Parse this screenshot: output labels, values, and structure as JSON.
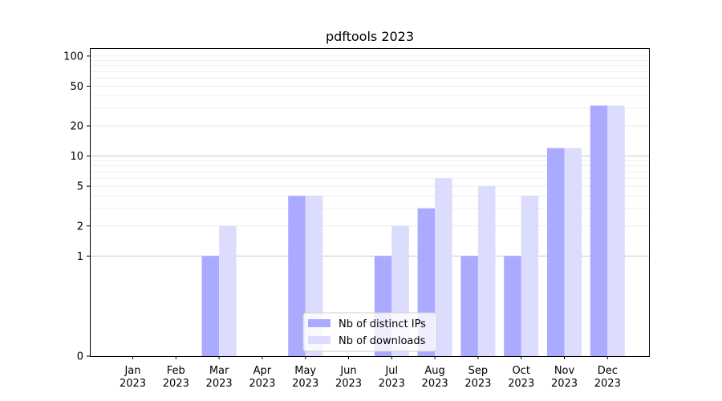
{
  "chart_data": {
    "type": "bar",
    "title": "pdftools 2023",
    "xlabel": "",
    "ylabel": "",
    "y_scale": "symlog",
    "ylim": [
      0,
      120
    ],
    "y_ticks": [
      0,
      1,
      2,
      5,
      10,
      20,
      50,
      100
    ],
    "y_tick_labels": [
      "0",
      "1",
      "2",
      "5",
      "10",
      "20",
      "50",
      "100"
    ],
    "grid": true,
    "legend_position": "bottom-center",
    "categories": [
      [
        "Jan",
        "2023"
      ],
      [
        "Feb",
        "2023"
      ],
      [
        "Mar",
        "2023"
      ],
      [
        "Apr",
        "2023"
      ],
      [
        "May",
        "2023"
      ],
      [
        "Jun",
        "2023"
      ],
      [
        "Jul",
        "2023"
      ],
      [
        "Aug",
        "2023"
      ],
      [
        "Sep",
        "2023"
      ],
      [
        "Oct",
        "2023"
      ],
      [
        "Nov",
        "2023"
      ],
      [
        "Dec",
        "2023"
      ]
    ],
    "series": [
      {
        "name": "Nb of distinct IPs",
        "color": "#aaaaff",
        "values": [
          0,
          0,
          1,
          0,
          4,
          0,
          1,
          3,
          1,
          1,
          12,
          32
        ]
      },
      {
        "name": "Nb of downloads",
        "color": "#dcdcff",
        "values": [
          0,
          0,
          2,
          0,
          4,
          0,
          2,
          6,
          5,
          4,
          12,
          32
        ]
      }
    ]
  }
}
